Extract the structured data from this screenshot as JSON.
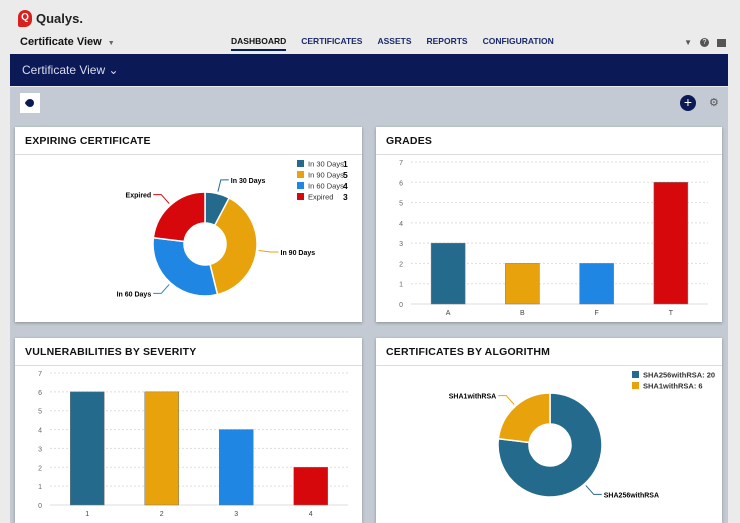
{
  "header": {
    "brand": "Qualys.",
    "app": "Certificate View",
    "nav": [
      "DASHBOARD",
      "CERTIFICATES",
      "ASSETS",
      "REPORTS",
      "CONFIGURATION"
    ],
    "active": "DASHBOARD"
  },
  "bar": {
    "title": "Certificate View"
  },
  "colors": {
    "teal": "#236a8c",
    "amber": "#e8a30c",
    "blue": "#1f86e3",
    "red": "#d6080c"
  },
  "chart_data": [
    {
      "type": "pie",
      "title": "EXPIRING CERTIFICATE",
      "donut": true,
      "slices": [
        {
          "label": "In 30 Days",
          "value": 1,
          "color": "#236a8c"
        },
        {
          "label": "In 90 Days",
          "value": 5,
          "color": "#e8a30c"
        },
        {
          "label": "In 60 Days",
          "value": 4,
          "color": "#1f86e3"
        },
        {
          "label": "Expired",
          "value": 3,
          "color": "#d6080c"
        }
      ],
      "legend": "top-right"
    },
    {
      "type": "bar",
      "title": "GRADES",
      "categories": [
        "A",
        "B",
        "F",
        "T"
      ],
      "values": [
        3,
        2,
        2,
        6
      ],
      "colors": [
        "#236a8c",
        "#e8a30c",
        "#1f86e3",
        "#d6080c"
      ],
      "ylim": [
        0,
        7
      ],
      "grid": true
    },
    {
      "type": "bar",
      "title": "VULNERABILITIES BY SEVERITY",
      "categories": [
        "1",
        "2",
        "3",
        "4"
      ],
      "values": [
        6,
        6,
        4,
        2
      ],
      "colors": [
        "#236a8c",
        "#e8a30c",
        "#1f86e3",
        "#d6080c"
      ],
      "ylim": [
        0,
        7
      ],
      "grid": true
    },
    {
      "type": "pie",
      "title": "CERTIFICATES BY ALGORITHM",
      "donut": true,
      "slices": [
        {
          "label": "SHA256withRSA",
          "value": 20,
          "color": "#236a8c"
        },
        {
          "label": "SHA1withRSA",
          "value": 6,
          "color": "#e8a30c"
        }
      ],
      "legend_labels": [
        "SHA256withRSA: 20",
        "SHA1withRSA: 6"
      ],
      "legend": "top-right"
    }
  ]
}
